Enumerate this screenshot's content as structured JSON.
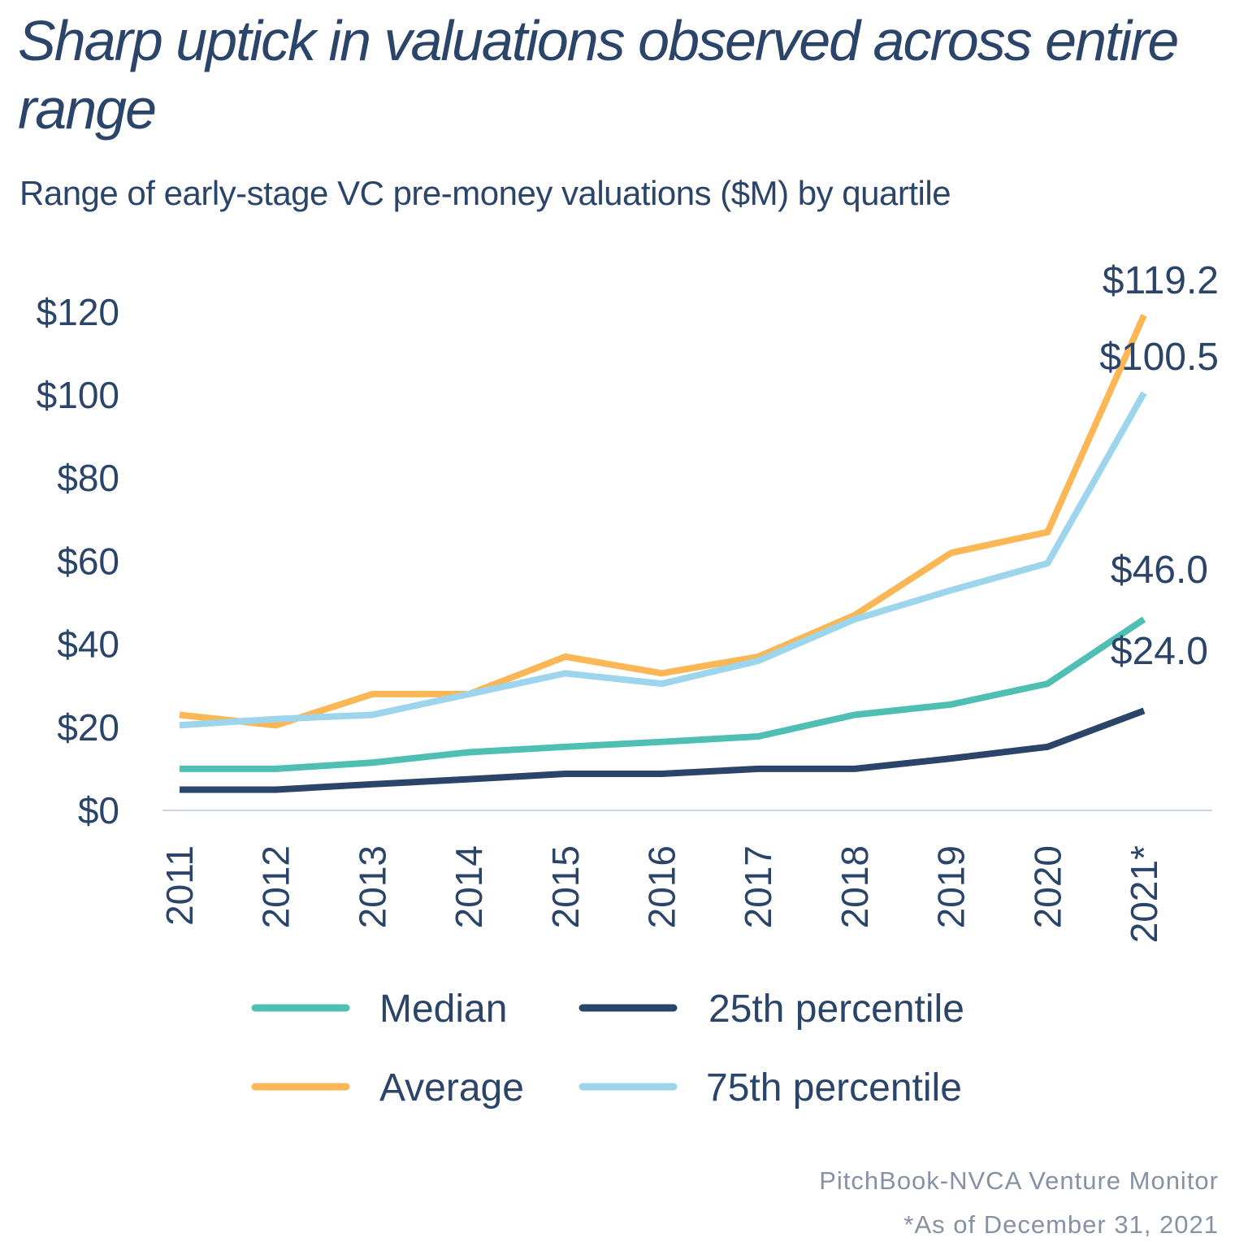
{
  "chart_data": {
    "type": "line",
    "title": "Sharp uptick in valuations observed across entire range",
    "subtitle": "Range of early-stage VC pre-money valuations ($M) by quartile",
    "categories": [
      "2011",
      "2012",
      "2013",
      "2014",
      "2015",
      "2016",
      "2017",
      "2018",
      "2019",
      "2020",
      "2021*"
    ],
    "y_ticks": [
      "$0",
      "$20",
      "$40",
      "$60",
      "$80",
      "$100",
      "$120"
    ],
    "ylim": [
      0,
      120
    ],
    "grid": false,
    "legend_position": "bottom",
    "series": [
      {
        "name": "Median",
        "color": "#4fbfb4",
        "values": [
          10,
          10,
          11.5,
          14,
          15.3,
          16.5,
          17.8,
          23,
          25.5,
          30.5,
          46.0
        ],
        "end_label": "$46.0"
      },
      {
        "name": "25th percentile",
        "color": "#2b4469",
        "values": [
          5,
          5,
          6.3,
          7.5,
          8.8,
          8.8,
          10,
          10,
          12.5,
          15.3,
          24.0
        ],
        "end_label": "$24.0"
      },
      {
        "name": "Average",
        "color": "#fbb655",
        "values": [
          23,
          20.5,
          28,
          28,
          37,
          33,
          37,
          47,
          62,
          67,
          119.2
        ],
        "end_label": "$119.2"
      },
      {
        "name": "75th percentile",
        "color": "#9dd6ec",
        "values": [
          20.5,
          22,
          23,
          28,
          33,
          30.5,
          36,
          46,
          53,
          59.5,
          100.5
        ],
        "end_label": "$100.5"
      }
    ]
  },
  "source": "PitchBook-NVCA Venture Monitor",
  "footnote": "*As of December 31, 2021"
}
